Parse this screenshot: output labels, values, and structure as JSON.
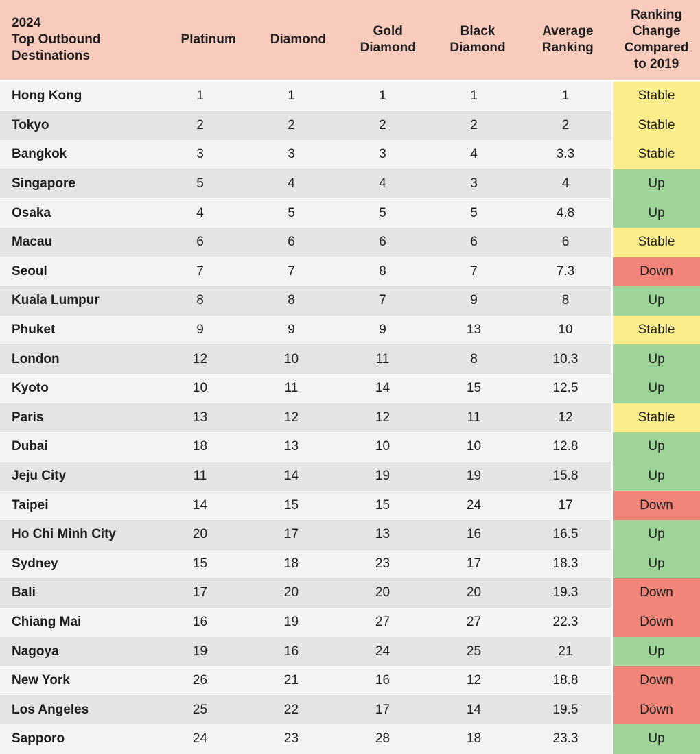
{
  "chart_data": {
    "type": "table",
    "columns": [
      "2024\nTop Outbound\nDestinations",
      "Platinum",
      "Diamond",
      "Gold\nDiamond",
      "Black\nDiamond",
      "Average\nRanking",
      "Ranking\nChange\nCompared\nto 2019"
    ],
    "rows": [
      [
        "Hong Kong",
        "1",
        "1",
        "1",
        "1",
        "1",
        "Stable"
      ],
      [
        "Tokyo",
        "2",
        "2",
        "2",
        "2",
        "2",
        "Stable"
      ],
      [
        "Bangkok",
        "3",
        "3",
        "3",
        "4",
        "3.3",
        "Stable"
      ],
      [
        "Singapore",
        "5",
        "4",
        "4",
        "3",
        "4",
        "Up"
      ],
      [
        "Osaka",
        "4",
        "5",
        "5",
        "5",
        "4.8",
        "Up"
      ],
      [
        "Macau",
        "6",
        "6",
        "6",
        "6",
        "6",
        "Stable"
      ],
      [
        "Seoul",
        "7",
        "7",
        "8",
        "7",
        "7.3",
        "Down"
      ],
      [
        "Kuala Lumpur",
        "8",
        "8",
        "7",
        "9",
        "8",
        "Up"
      ],
      [
        "Phuket",
        "9",
        "9",
        "9",
        "13",
        "10",
        "Stable"
      ],
      [
        "London",
        "12",
        "10",
        "11",
        "8",
        "10.3",
        "Up"
      ],
      [
        "Kyoto",
        "10",
        "11",
        "14",
        "15",
        "12.5",
        "Up"
      ],
      [
        "Paris",
        "13",
        "12",
        "12",
        "11",
        "12",
        "Stable"
      ],
      [
        "Dubai",
        "18",
        "13",
        "10",
        "10",
        "12.8",
        "Up"
      ],
      [
        "Jeju City",
        "11",
        "14",
        "19",
        "19",
        "15.8",
        "Up"
      ],
      [
        "Taipei",
        "14",
        "15",
        "15",
        "24",
        "17",
        "Down"
      ],
      [
        "Ho Chi Minh City",
        "20",
        "17",
        "13",
        "16",
        "16.5",
        "Up"
      ],
      [
        "Sydney",
        "15",
        "18",
        "23",
        "17",
        "18.3",
        "Up"
      ],
      [
        "Bali",
        "17",
        "20",
        "20",
        "20",
        "19.3",
        "Down"
      ],
      [
        "Chiang Mai",
        "16",
        "19",
        "27",
        "27",
        "22.3",
        "Down"
      ],
      [
        "Nagoya",
        "19",
        "16",
        "24",
        "25",
        "21",
        "Up"
      ],
      [
        "New York",
        "26",
        "21",
        "16",
        "12",
        "18.8",
        "Down"
      ],
      [
        "Los Angeles",
        "25",
        "22",
        "17",
        "14",
        "19.5",
        "Down"
      ],
      [
        "Sapporo",
        "24",
        "23",
        "28",
        "18",
        "23.3",
        "Up"
      ]
    ],
    "status_colors": {
      "Stable": "#fbee8a",
      "Up": "#9fd598",
      "Down": "#f28579"
    },
    "header_color": "#f9cbbd"
  }
}
